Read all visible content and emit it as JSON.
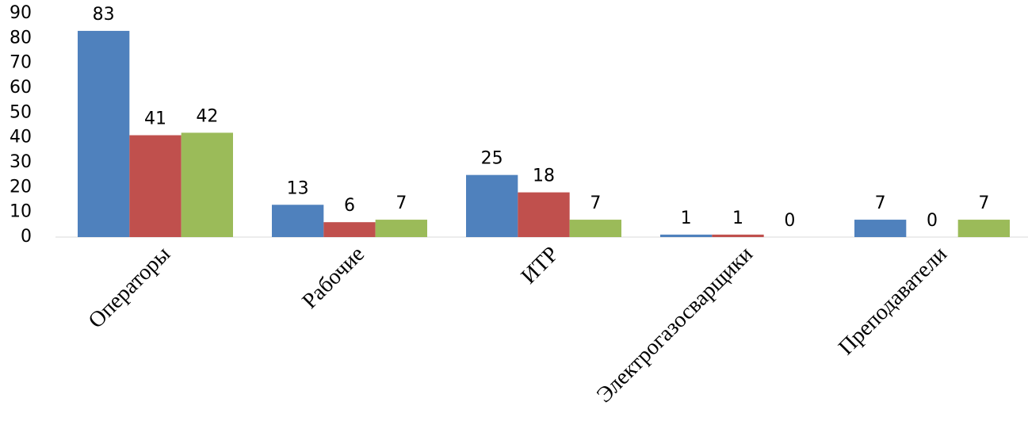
{
  "chart_data": {
    "type": "bar",
    "categories": [
      "Операторы",
      "Рабочие",
      "ИТР",
      "Электрогазосварщики",
      "Преподаватели"
    ],
    "series": [
      {
        "color": "#4f81bd",
        "values": [
          83,
          13,
          25,
          1,
          7
        ]
      },
      {
        "color": "#c0504d",
        "values": [
          41,
          6,
          18,
          1,
          0
        ]
      },
      {
        "color": "#9bbb59",
        "values": [
          42,
          7,
          7,
          0,
          7
        ]
      }
    ],
    "ylim": [
      0,
      90
    ],
    "yticks": [
      0,
      10,
      20,
      30,
      40,
      50,
      60,
      70,
      80,
      90
    ],
    "grid": false
  }
}
